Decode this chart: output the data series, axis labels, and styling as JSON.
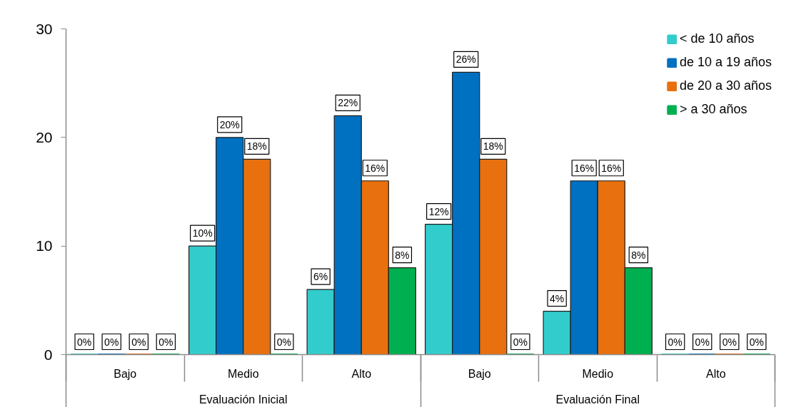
{
  "chart_data": {
    "type": "bar",
    "categories": [
      "Bajo",
      "Medio",
      "Alto",
      "Bajo",
      "Medio",
      "Alto"
    ],
    "annotations": [
      "Evaluación Inicial",
      "Evaluación Final"
    ],
    "series": [
      {
        "name": "< de 10 años",
        "color": "#33cccc",
        "values": [
          0,
          10,
          6,
          12,
          4,
          0
        ],
        "value_labels": [
          "0%",
          "10%",
          "6%",
          "12%",
          "4%",
          "0%"
        ]
      },
      {
        "name": "de 10 a 19 años",
        "color": "#0070c0",
        "values": [
          0,
          20,
          22,
          26,
          16,
          0
        ],
        "value_labels": [
          "0%",
          "20%",
          "22%",
          "26%",
          "16%",
          "0%"
        ]
      },
      {
        "name": "de 20 a 30 años",
        "color": "#e8700e",
        "values": [
          0,
          18,
          16,
          18,
          16,
          0
        ],
        "value_labels": [
          "0%",
          "18%",
          "16%",
          "18%",
          "16%",
          "0%"
        ]
      },
      {
        "name": "> a 30 años",
        "color": "#00b050",
        "values": [
          0,
          0,
          8,
          0,
          8,
          0
        ],
        "value_labels": [
          "0%",
          "0%",
          "8%",
          "0%",
          "8%",
          "0%"
        ]
      }
    ],
    "ylim": [
      0,
      30
    ],
    "yticks": [
      0,
      10,
      20,
      30
    ],
    "legend": "top right"
  }
}
